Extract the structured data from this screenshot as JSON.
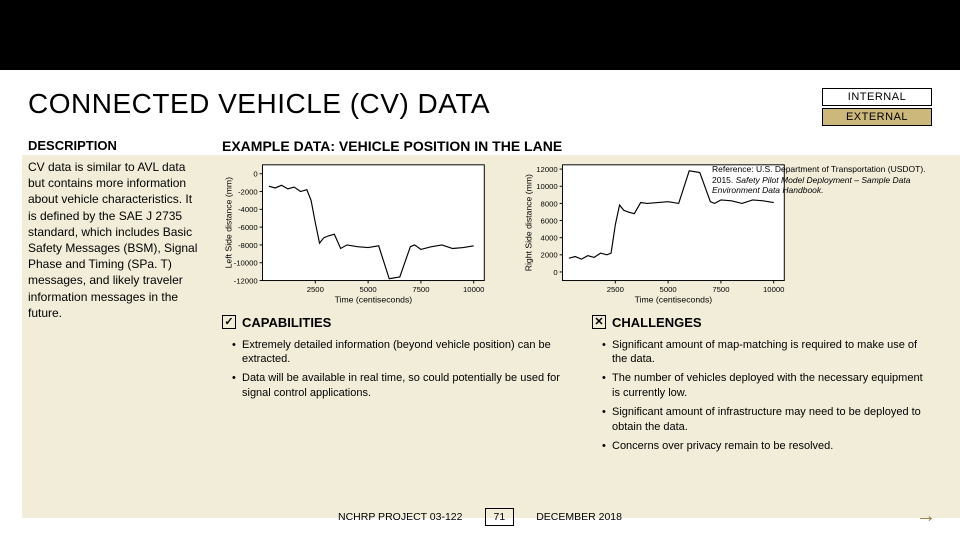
{
  "header": {
    "title": "CONNECTED VEHICLE (CV) DATA",
    "tag_internal": "INTERNAL",
    "tag_external": "EXTERNAL"
  },
  "description": {
    "heading": "DESCRIPTION",
    "text": "CV data is similar to AVL data but contains more information about vehicle characteristics. It is defined by the SAE J 2735 standard, which includes Basic Safety Messages (BSM), Signal Phase and Timing (SPa. T) messages, and likely traveler information messages in the future."
  },
  "example": {
    "heading": "EXAMPLE DATA: VEHICLE POSITION IN THE LANE",
    "reference": "Reference: U.S. Department of Transportation (USDOT). 2015. ",
    "reference_italic": "Safety Pilot Model Deployment – Sample Data Environment Data Handbook."
  },
  "charts": {
    "left": {
      "ylabel": "Left Side distance (mm)",
      "xlabel": "Time (centiseconds)",
      "xlim": [
        0,
        10500
      ],
      "ylim": [
        -12000,
        1000
      ],
      "xticks": [
        2500,
        5000,
        7500,
        10000
      ],
      "yticks": [
        0,
        -2000,
        -4000,
        -6000,
        -8000,
        -10000,
        -12000
      ],
      "line_color": "#000000",
      "bg": "#ffffff",
      "data_x": [
        300,
        600,
        900,
        1200,
        1500,
        1800,
        2100,
        2300,
        2500,
        2700,
        2900,
        3100,
        3400,
        3700,
        4000,
        4500,
        5000,
        5500,
        6000,
        6500,
        7000,
        7200,
        7500,
        8000,
        8500,
        9000,
        9500,
        10000
      ],
      "data_y": [
        -1400,
        -1600,
        -1300,
        -1700,
        -1500,
        -2000,
        -1800,
        -3000,
        -5500,
        -7800,
        -7200,
        -7000,
        -6800,
        -8400,
        -8000,
        -8200,
        -8300,
        -8100,
        -11800,
        -11600,
        -8200,
        -8000,
        -8500,
        -8200,
        -8000,
        -8400,
        -8300,
        -8100
      ]
    },
    "right": {
      "ylabel": "Right Side distance (mm)",
      "xlabel": "Time (centiseconds)",
      "xlim": [
        0,
        10500
      ],
      "ylim": [
        -1000,
        12500
      ],
      "xticks": [
        2500,
        5000,
        7500,
        10000
      ],
      "yticks": [
        12000,
        10000,
        8000,
        6000,
        4000,
        2000,
        0
      ],
      "line_color": "#000000",
      "bg": "#ffffff",
      "data_x": [
        300,
        600,
        900,
        1200,
        1500,
        1800,
        2100,
        2300,
        2500,
        2700,
        2900,
        3100,
        3400,
        3700,
        4000,
        4500,
        5000,
        5500,
        6000,
        6500,
        7000,
        7200,
        7500,
        8000,
        8500,
        9000,
        9500,
        10000
      ],
      "data_y": [
        1600,
        1800,
        1500,
        1900,
        1700,
        2200,
        2000,
        2200,
        5500,
        7800,
        7200,
        7000,
        6800,
        8100,
        8000,
        8100,
        8200,
        8000,
        11800,
        11600,
        8200,
        8000,
        8400,
        8300,
        8000,
        8400,
        8300,
        8100
      ]
    }
  },
  "capabilities": {
    "heading": "CAPABILITIES",
    "mark": "✓",
    "items": [
      "Extremely detailed information (beyond vehicle position) can be extracted.",
      "Data will be available in real time, so could potentially be used for signal control applications."
    ]
  },
  "challenges": {
    "heading": "CHALLENGES",
    "mark": "✕",
    "items": [
      "Significant amount of map-matching is required to make use of the data.",
      "The number of vehicles deployed with the necessary equipment is currently low.",
      "Significant amount of infrastructure may need to be deployed to obtain the data.",
      "Concerns over privacy remain to be resolved."
    ]
  },
  "footer": {
    "project": "NCHRP PROJECT 03-122",
    "page": "71",
    "date": "DECEMBER 2018"
  }
}
